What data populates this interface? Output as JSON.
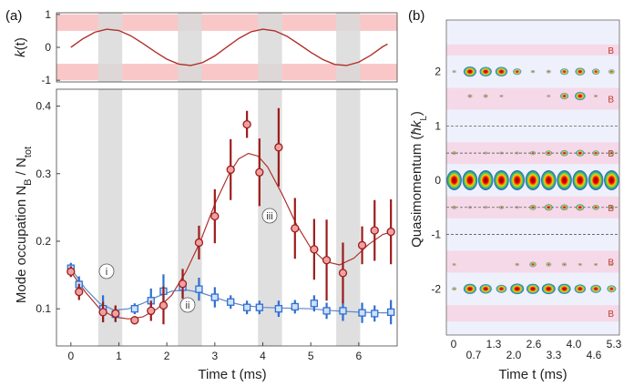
{
  "panel_a_label": "(a)",
  "panel_b_label": "(b)",
  "chart_data": [
    {
      "panel": "(a) top",
      "type": "line",
      "ylabel_main": "k",
      "ylabel_arg": "(t)",
      "yticks": [
        "1",
        "0",
        "-1"
      ],
      "ylim": [
        -1.05,
        1.05
      ],
      "xlim": [
        -0.3,
        6.8
      ],
      "x": [
        0,
        0.25,
        0.5,
        0.75,
        1.0,
        1.25,
        1.5,
        1.75,
        2.0,
        2.25,
        2.5,
        2.75,
        3.0,
        3.25,
        3.5,
        3.75,
        4.0,
        4.25,
        4.5,
        4.75,
        5.0,
        5.25,
        5.5,
        5.75,
        6.0,
        6.25,
        6.5,
        6.6
      ],
      "series": [
        {
          "values": [
            0,
            0.26,
            0.46,
            0.55,
            0.51,
            0.35,
            0.12,
            -0.13,
            -0.36,
            -0.51,
            -0.55,
            -0.46,
            -0.26,
            0.01,
            0.27,
            0.47,
            0.55,
            0.5,
            0.34,
            0.1,
            -0.15,
            -0.37,
            -0.52,
            -0.55,
            -0.45,
            -0.24,
            0.02,
            0.1
          ]
        }
      ],
      "shaded_bands_y": [
        [
          0.5,
          1.0
        ],
        [
          -1.0,
          -0.5
        ]
      ],
      "gray_windows_x": [
        [
          0.57,
          1.07
        ],
        [
          2.23,
          2.73
        ],
        [
          3.9,
          4.4
        ],
        [
          5.53,
          6.03
        ]
      ],
      "grid": false
    },
    {
      "panel": "(a) bottom",
      "type": "scatter",
      "xlabel": "Time t (ms)",
      "ylabel_main": "Mode occupation N",
      "ylabel_sub1": "B",
      "ylabel_sep": " / N",
      "ylabel_sub2": "tot",
      "xticks": [
        "0",
        "1",
        "2",
        "3",
        "4",
        "5",
        "6"
      ],
      "yticks": [
        "0.1",
        "0.2",
        "0.3",
        "0.4"
      ],
      "xlim": [
        -0.3,
        6.8
      ],
      "ylim": [
        0.045,
        0.425
      ],
      "gray_windows_x": [
        [
          0.57,
          1.07
        ],
        [
          2.23,
          2.73
        ],
        [
          3.9,
          4.4
        ],
        [
          5.53,
          6.03
        ]
      ],
      "annotations": [
        "i",
        "ii",
        "iii"
      ],
      "series": [
        {
          "color": "#9b1c1c",
          "points": [
            {
              "x": 0.0,
              "y": 0.155,
              "err": 0.008
            },
            {
              "x": 0.17,
              "y": 0.125,
              "err": 0.012
            },
            {
              "x": 0.67,
              "y": 0.095,
              "err": 0.015
            },
            {
              "x": 0.93,
              "y": 0.093,
              "err": 0.012
            },
            {
              "x": 1.33,
              "y": 0.083,
              "err": 0.006
            },
            {
              "x": 1.67,
              "y": 0.097,
              "err": 0.015
            },
            {
              "x": 1.93,
              "y": 0.105,
              "err": 0.028
            },
            {
              "x": 2.33,
              "y": 0.137,
              "err": 0.022
            },
            {
              "x": 2.67,
              "y": 0.198,
              "err": 0.025
            },
            {
              "x": 3.0,
              "y": 0.237,
              "err": 0.04
            },
            {
              "x": 3.33,
              "y": 0.306,
              "err": 0.045
            },
            {
              "x": 3.67,
              "y": 0.373,
              "err": 0.02
            },
            {
              "x": 3.93,
              "y": 0.302,
              "err": 0.05
            },
            {
              "x": 4.33,
              "y": 0.339,
              "err": 0.058
            },
            {
              "x": 4.67,
              "y": 0.219,
              "err": 0.045
            },
            {
              "x": 5.07,
              "y": 0.188,
              "err": 0.045
            },
            {
              "x": 5.33,
              "y": 0.172,
              "err": 0.06
            },
            {
              "x": 5.67,
              "y": 0.153,
              "err": 0.045
            },
            {
              "x": 6.07,
              "y": 0.194,
              "err": 0.028
            },
            {
              "x": 6.33,
              "y": 0.216,
              "err": 0.045
            },
            {
              "x": 6.67,
              "y": 0.214,
              "err": 0.048
            }
          ],
          "fit": [
            [
              0,
              0.155
            ],
            [
              0.3,
              0.125
            ],
            [
              0.6,
              0.1
            ],
            [
              0.9,
              0.088
            ],
            [
              1.2,
              0.085
            ],
            [
              1.5,
              0.088
            ],
            [
              1.8,
              0.1
            ],
            [
              2.1,
              0.12
            ],
            [
              2.4,
              0.155
            ],
            [
              2.7,
              0.2
            ],
            [
              3.0,
              0.255
            ],
            [
              3.3,
              0.3
            ],
            [
              3.5,
              0.322
            ],
            [
              3.7,
              0.33
            ],
            [
              3.9,
              0.326
            ],
            [
              4.1,
              0.31
            ],
            [
              4.4,
              0.27
            ],
            [
              4.7,
              0.225
            ],
            [
              5.0,
              0.19
            ],
            [
              5.3,
              0.17
            ],
            [
              5.6,
              0.165
            ],
            [
              5.9,
              0.175
            ],
            [
              6.2,
              0.195
            ],
            [
              6.5,
              0.21
            ],
            [
              6.75,
              0.215
            ]
          ]
        },
        {
          "color": "#2e6fd0",
          "points": [
            {
              "x": 0.0,
              "y": 0.16,
              "err": 0.008
            },
            {
              "x": 0.17,
              "y": 0.136,
              "err": 0.012
            },
            {
              "x": 0.67,
              "y": 0.1,
              "err": 0.02
            },
            {
              "x": 0.93,
              "y": 0.092,
              "err": 0.012
            },
            {
              "x": 1.33,
              "y": 0.1,
              "err": 0.008
            },
            {
              "x": 1.67,
              "y": 0.112,
              "err": 0.018
            },
            {
              "x": 1.93,
              "y": 0.126,
              "err": 0.025
            },
            {
              "x": 2.33,
              "y": 0.132,
              "err": 0.015
            },
            {
              "x": 2.67,
              "y": 0.129,
              "err": 0.017
            },
            {
              "x": 3.0,
              "y": 0.117,
              "err": 0.015
            },
            {
              "x": 3.33,
              "y": 0.11,
              "err": 0.01
            },
            {
              "x": 3.67,
              "y": 0.102,
              "err": 0.01
            },
            {
              "x": 3.93,
              "y": 0.102,
              "err": 0.01
            },
            {
              "x": 4.33,
              "y": 0.1,
              "err": 0.012
            },
            {
              "x": 4.67,
              "y": 0.103,
              "err": 0.01
            },
            {
              "x": 5.07,
              "y": 0.108,
              "err": 0.012
            },
            {
              "x": 5.33,
              "y": 0.097,
              "err": 0.012
            },
            {
              "x": 5.67,
              "y": 0.097,
              "err": 0.015
            },
            {
              "x": 6.07,
              "y": 0.094,
              "err": 0.015
            },
            {
              "x": 6.33,
              "y": 0.093,
              "err": 0.012
            },
            {
              "x": 6.67,
              "y": 0.095,
              "err": 0.018
            }
          ],
          "fit": [
            [
              0,
              0.16
            ],
            [
              0.3,
              0.13
            ],
            [
              0.6,
              0.108
            ],
            [
              0.9,
              0.098
            ],
            [
              1.2,
              0.1
            ],
            [
              1.5,
              0.108
            ],
            [
              1.8,
              0.118
            ],
            [
              2.1,
              0.126
            ],
            [
              2.4,
              0.128
            ],
            [
              2.7,
              0.124
            ],
            [
              3.0,
              0.117
            ],
            [
              3.3,
              0.11
            ],
            [
              3.6,
              0.105
            ],
            [
              4.0,
              0.102
            ],
            [
              4.5,
              0.101
            ],
            [
              5.0,
              0.1
            ],
            [
              5.5,
              0.097
            ],
            [
              6.0,
              0.095
            ],
            [
              6.5,
              0.094
            ],
            [
              6.75,
              0.094
            ]
          ]
        }
      ],
      "grid": false
    },
    {
      "panel": "(b)",
      "type": "heatmap",
      "xlabel": "Time t (ms)",
      "ylabel_main": "Quasimomentum (",
      "ylabel_end": ")",
      "ylabel_hbar": "ħk",
      "ylabel_sub": "L",
      "xticks": [
        "0",
        "0.7",
        "1.3",
        "2.0",
        "2.6",
        "3.3",
        "4.0",
        "4.6",
        "5.3"
      ],
      "yticks": [
        "2",
        "1",
        "0",
        "-1",
        "-2"
      ],
      "band_label": "B",
      "columns": 11,
      "dashed_lines_y": [
        1.0,
        0.5,
        -0.5,
        -1.0
      ],
      "pink_bands_y": [
        [
          2.5,
          2.3
        ],
        [
          1.7,
          1.3
        ],
        [
          0.7,
          0.3
        ],
        [
          -0.3,
          -0.7
        ],
        [
          -1.3,
          -1.7
        ],
        [
          -2.3,
          -2.6
        ]
      ],
      "orders": [
        {
          "y": 2.0,
          "intensity": [
            0.2,
            0.85,
            0.8,
            0.8,
            0.55,
            0.25,
            0.3,
            0.55,
            0.65,
            0.5,
            0.4
          ]
        },
        {
          "y": 1.55,
          "intensity": [
            0.0,
            0.3,
            0.3,
            0.1,
            0.0,
            0.0,
            0.05,
            0.55,
            0.7,
            0.2,
            0.0
          ]
        },
        {
          "y": 0.5,
          "intensity": [
            0.3,
            0.0,
            0.1,
            0.2,
            0.05,
            0.35,
            0.45,
            0.5,
            0.55,
            0.45,
            0.35
          ]
        },
        {
          "y": 0.0,
          "intensity": [
            1.0,
            1.0,
            1.0,
            1.0,
            1.0,
            1.0,
            1.0,
            1.0,
            1.0,
            1.0,
            1.0
          ]
        },
        {
          "y": -0.5,
          "intensity": [
            0.3,
            0.1,
            0.15,
            0.3,
            0.15,
            0.45,
            0.55,
            0.5,
            0.55,
            0.45,
            0.35
          ]
        },
        {
          "y": -1.55,
          "intensity": [
            0.1,
            0.0,
            0.0,
            0.0,
            0.25,
            0.45,
            0.35,
            0.3,
            0.2,
            0.2,
            0.1
          ]
        },
        {
          "y": -2.0,
          "intensity": [
            0.3,
            0.85,
            0.8,
            0.7,
            0.9,
            0.85,
            0.9,
            0.85,
            0.75,
            0.7,
            0.6
          ]
        }
      ],
      "ylim": [
        -2.85,
        2.95
      ]
    }
  ]
}
